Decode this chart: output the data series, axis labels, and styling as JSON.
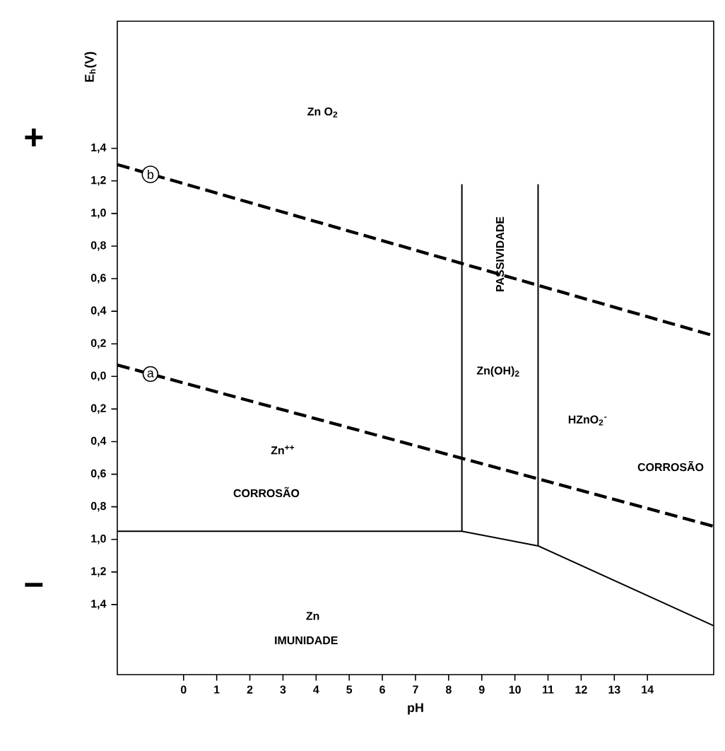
{
  "chart_data": {
    "type": "line",
    "xlabel": "pH",
    "ylabel": "E$_{h}$(V)",
    "xlim": [
      -2,
      16
    ],
    "ylim": [
      -1.83,
      2.18
    ],
    "xticks": [
      0,
      1,
      2,
      3,
      4,
      5,
      6,
      7,
      8,
      9,
      10,
      11,
      12,
      13,
      14
    ],
    "yticks": [
      {
        "value": 1.4,
        "label": "1,4"
      },
      {
        "value": 1.2,
        "label": "1,2"
      },
      {
        "value": 1.0,
        "label": "1,0"
      },
      {
        "value": 0.8,
        "label": "0,8"
      },
      {
        "value": 0.6,
        "label": "0,6"
      },
      {
        "value": 0.4,
        "label": "0,4"
      },
      {
        "value": 0.2,
        "label": "0,2"
      },
      {
        "value": 0.0,
        "label": "0,0"
      },
      {
        "value": -0.2,
        "label": "0,2"
      },
      {
        "value": -0.4,
        "label": "0,4"
      },
      {
        "value": -0.6,
        "label": "0,6"
      },
      {
        "value": -0.8,
        "label": "0,8"
      },
      {
        "value": -1.0,
        "label": "1,0"
      },
      {
        "value": -1.2,
        "label": "1,2"
      },
      {
        "value": -1.4,
        "label": "1,4"
      }
    ],
    "grid": false,
    "marker": "none",
    "series": [
      {
        "color": "#000000",
        "line_style": "dashed",
        "x": [
          -2,
          16
        ],
        "values": [
          1.3,
          0.25
        ]
      },
      {
        "color": "#000000",
        "line_style": "dashed",
        "x": [
          -2,
          16
        ],
        "values": [
          0.07,
          -0.92
        ]
      },
      {
        "color": "#000000",
        "line_style": "solid",
        "x": [
          -2,
          8.4,
          10.7,
          16
        ],
        "values": [
          -0.95,
          -0.95,
          -1.04,
          -1.53
        ]
      },
      {
        "color": "#000000",
        "line_style": "solid",
        "x": [
          8.4,
          8.4
        ],
        "values": [
          1.18,
          -0.95
        ]
      },
      {
        "color": "#000000",
        "line_style": "solid",
        "x": [
          10.7,
          10.7
        ],
        "values": [
          1.18,
          -1.04
        ]
      }
    ],
    "annotations": [
      "Zn O$_{2}$",
      "PASSIVIDADE",
      "Zn(OH)$_{2}$",
      "HZnO$_{2}$$^{-}$",
      "CORROSÃO",
      "Zn$^{++}$",
      "CORROSÃO",
      "Zn",
      "IMUNIDADE",
      "b",
      "a",
      "+",
      "−"
    ]
  }
}
